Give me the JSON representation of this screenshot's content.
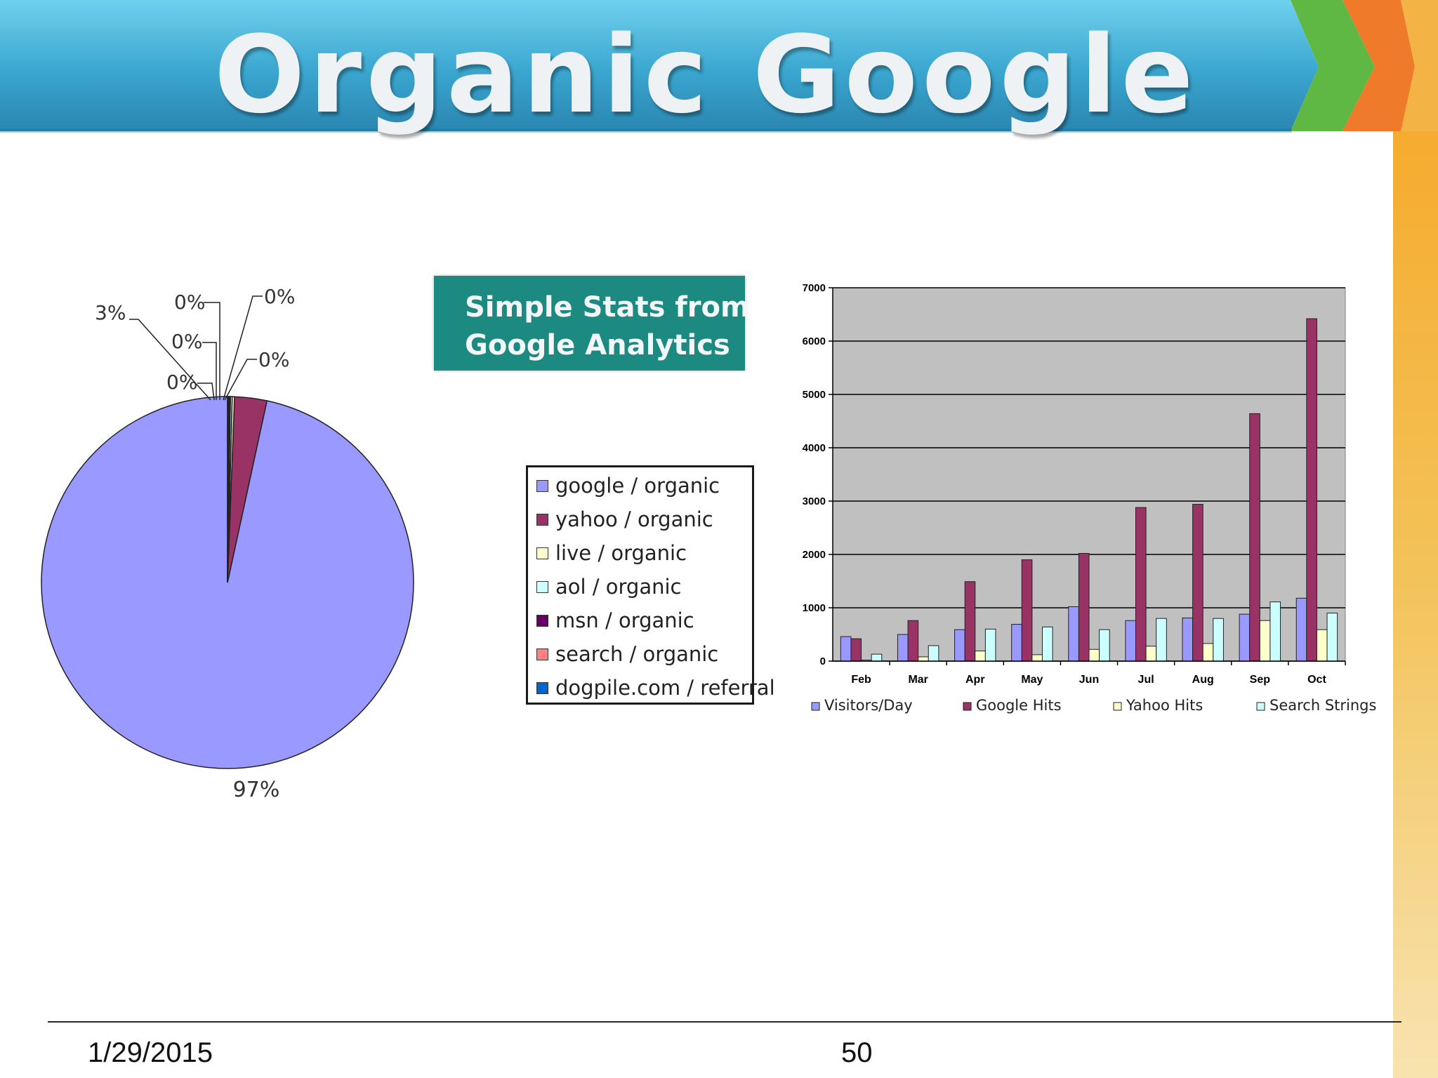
{
  "slide": {
    "title": "Organic Google",
    "stats_box": {
      "line1": "Simple Stats from",
      "line2": "Google Analytics"
    },
    "footer": {
      "date": "1/29/2015",
      "page": "50"
    }
  },
  "colors": {
    "banner_blue": "#3ea9cf",
    "arrow_green": "#5fb844",
    "arrow_orange": "#ee7a2a",
    "side_gold": "#f0b23a",
    "stats_box": "#1d8a82",
    "plot_area": "#c0c0c0"
  },
  "chart_data": [
    {
      "type": "pie",
      "categories": [
        "google / organic",
        "yahoo / organic",
        "live / organic",
        "aol / organic",
        "msn / organic",
        "search / organic",
        "dogpile.com / referral"
      ],
      "values": [
        96.6,
        2.8,
        0.2,
        0.15,
        0.1,
        0.08,
        0.07
      ],
      "slice_labels": [
        "97%",
        "3%",
        "0%",
        "0%",
        "0%",
        "0%",
        "0%"
      ],
      "colors": [
        "#9999ff",
        "#993366",
        "#ffffcc",
        "#ccffff",
        "#660066",
        "#ff8080",
        "#0066cc"
      ],
      "legend": "right"
    },
    {
      "type": "bar",
      "categories": [
        "Feb",
        "Mar",
        "Apr",
        "May",
        "Jun",
        "Jul",
        "Aug",
        "Sep",
        "Oct"
      ],
      "series": [
        {
          "name": "Visitors/Day",
          "color": "#9999ff",
          "values": [
            460,
            500,
            590,
            690,
            1020,
            760,
            810,
            880,
            1180
          ]
        },
        {
          "name": "Google Hits",
          "color": "#993366",
          "values": [
            420,
            760,
            1490,
            1900,
            2020,
            2880,
            2940,
            4640,
            6420
          ]
        },
        {
          "name": "Yahoo Hits",
          "color": "#ffffcc",
          "values": [
            20,
            80,
            190,
            120,
            220,
            280,
            330,
            760,
            590
          ]
        },
        {
          "name": "Search Strings",
          "color": "#ccffff",
          "values": [
            130,
            290,
            600,
            640,
            590,
            800,
            800,
            1110,
            900
          ]
        }
      ],
      "ylim": [
        0,
        7000
      ],
      "yticks": [
        "0",
        "1000",
        "2000",
        "3000",
        "4000",
        "5000",
        "6000",
        "7000"
      ],
      "grid": true,
      "legend": "bottom"
    }
  ]
}
